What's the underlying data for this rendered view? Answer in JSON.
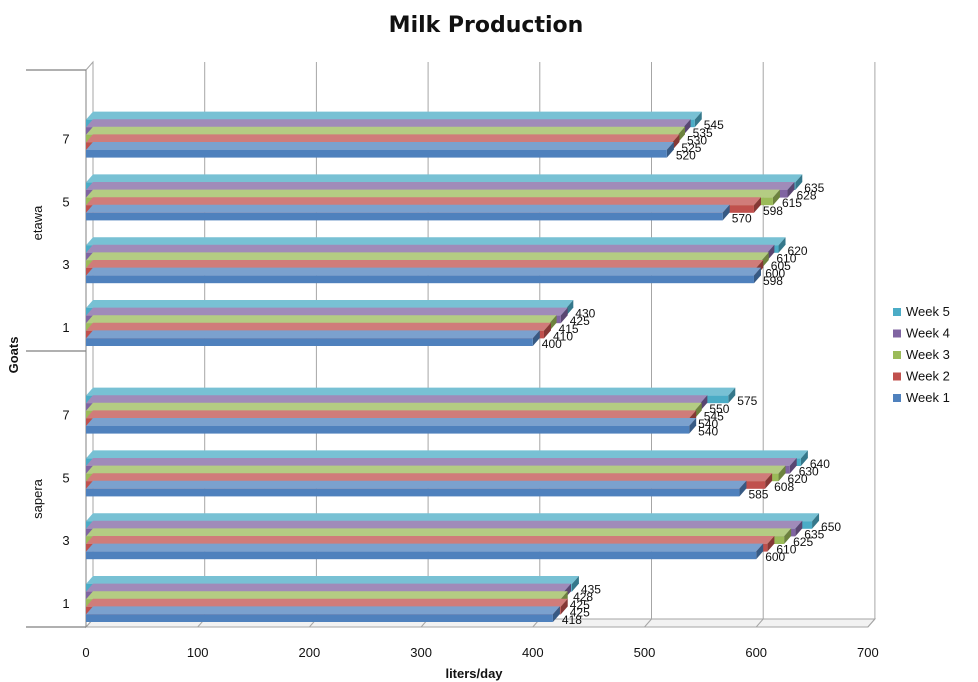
{
  "chart_data": {
    "type": "bar",
    "orientation": "horizontal",
    "title": "Milk Production",
    "xlabel": "liters/day",
    "ylabel": "Goats",
    "xlim": [
      0,
      700
    ],
    "xticks": [
      0,
      100,
      200,
      300,
      400,
      500,
      600,
      700
    ],
    "grid": true,
    "legend_position": "right",
    "groups": [
      {
        "name": "sapera",
        "categories": [
          "1",
          "3",
          "5",
          "7"
        ]
      },
      {
        "name": "etawa",
        "categories": [
          "1",
          "3",
          "5",
          "7"
        ]
      }
    ],
    "series": [
      {
        "name": "Week 1",
        "color": "#4F81BD",
        "values": {
          "sapera": [
            418,
            600,
            585,
            540
          ],
          "etawa": [
            400,
            598,
            570,
            520
          ]
        }
      },
      {
        "name": "Week 2",
        "color": "#C0504D",
        "values": {
          "sapera": [
            425,
            610,
            608,
            540
          ],
          "etawa": [
            410,
            600,
            598,
            525
          ]
        }
      },
      {
        "name": "Week 3",
        "color": "#9BBB59",
        "values": {
          "sapera": [
            425,
            625,
            620,
            545
          ],
          "etawa": [
            415,
            605,
            615,
            530
          ]
        }
      },
      {
        "name": "Week 4",
        "color": "#8064A2",
        "values": {
          "sapera": [
            428,
            635,
            630,
            550
          ],
          "etawa": [
            425,
            610,
            628,
            535
          ]
        }
      },
      {
        "name": "Week 5",
        "color": "#4BACC6",
        "values": {
          "sapera": [
            435,
            650,
            640,
            575
          ],
          "etawa": [
            430,
            620,
            635,
            545
          ]
        }
      }
    ]
  }
}
